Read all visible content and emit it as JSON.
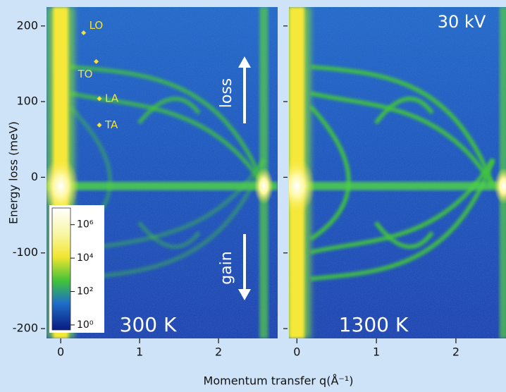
{
  "chart_data": [
    {
      "type": "scatter",
      "ylabel": "Energy loss (meV)",
      "xlim": [
        -0.18,
        2.75
      ],
      "ylim": [
        -213,
        225
      ],
      "xticks": [
        0,
        1,
        2
      ],
      "yticks": [
        -200,
        -100,
        0,
        100,
        200
      ],
      "point_labels": [
        "LO",
        "TO",
        "LA",
        "TA"
      ],
      "x": [
        0.29,
        0.45,
        0.49,
        0.49
      ],
      "values": [
        191,
        153,
        104,
        69
      ],
      "color": "#f3e23c",
      "annotations": [
        "loss",
        "gain"
      ],
      "temperature": "300 K",
      "colorbar": {
        "lim": [
          -0.3,
          7
        ],
        "ticks": [
          {
            "value": 6,
            "label": "10⁶"
          },
          {
            "value": 4,
            "label": "10⁴"
          },
          {
            "value": 2,
            "label": "10²"
          },
          {
            "value": 0,
            "label": "10⁰"
          }
        ]
      }
    },
    {
      "type": "image",
      "xlim": [
        -0.1,
        2.63
      ],
      "ylim": [
        -213,
        225
      ],
      "xticks": [
        0,
        1,
        2
      ],
      "yticks": [
        -200,
        -100,
        0,
        100,
        200
      ],
      "voltage": "30 kV",
      "temperature": "1300 K"
    }
  ],
  "figure": {
    "xlabel": "Momentum transfer q(Å⁻¹)"
  }
}
